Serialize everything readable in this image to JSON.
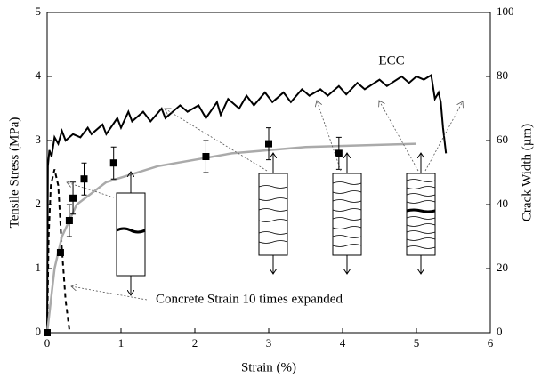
{
  "chart_data": {
    "type": "line",
    "xlabel": "Strain (%)",
    "ylabel": "Tensile Stress (MPa)",
    "y2label": "Crack Width (µm)",
    "xlim": [
      0,
      6
    ],
    "xticks": [
      0,
      1,
      2,
      3,
      4,
      5,
      6
    ],
    "ylim": [
      0,
      5
    ],
    "yticks": [
      0,
      1,
      2,
      3,
      4,
      5
    ],
    "y2lim": [
      0,
      100
    ],
    "y2ticks": [
      0,
      20,
      40,
      60,
      80,
      100
    ],
    "annotations": [
      "ECC",
      "Concrete Strain 10 times expanded"
    ],
    "series": [
      {
        "name": "ECC",
        "color": "#000000",
        "x": [
          0,
          0.01,
          0.03,
          0.06,
          0.1,
          0.15,
          0.2,
          0.25,
          0.35,
          0.45,
          0.55,
          0.6,
          0.75,
          0.8,
          0.95,
          1.0,
          1.1,
          1.15,
          1.3,
          1.4,
          1.55,
          1.6,
          1.8,
          1.9,
          2.05,
          2.15,
          2.3,
          2.35,
          2.45,
          2.6,
          2.7,
          2.8,
          2.95,
          3.05,
          3.2,
          3.3,
          3.45,
          3.55,
          3.7,
          3.8,
          3.95,
          4.05,
          4.2,
          4.3,
          4.5,
          4.6,
          4.8,
          4.9,
          5.0,
          5.1,
          5.2,
          5.25,
          5.3,
          5.33,
          5.36,
          5.4
        ],
        "values": [
          0,
          2.6,
          2.85,
          2.75,
          3.05,
          2.95,
          3.15,
          3.0,
          3.1,
          3.05,
          3.2,
          3.1,
          3.25,
          3.1,
          3.35,
          3.2,
          3.45,
          3.3,
          3.45,
          3.3,
          3.5,
          3.35,
          3.55,
          3.45,
          3.55,
          3.35,
          3.6,
          3.4,
          3.65,
          3.5,
          3.7,
          3.55,
          3.75,
          3.6,
          3.75,
          3.6,
          3.8,
          3.7,
          3.8,
          3.7,
          3.85,
          3.72,
          3.9,
          3.8,
          3.95,
          3.85,
          4.0,
          3.9,
          4.0,
          3.95,
          4.02,
          3.65,
          3.75,
          3.6,
          3.2,
          2.8
        ]
      },
      {
        "color": "#000000",
        "style": "dashed",
        "x": [
          0,
          0.02,
          0.05,
          0.1,
          0.15,
          0.2,
          0.25,
          0.3
        ],
        "values": [
          0,
          1.5,
          2.3,
          2.55,
          2.3,
          1.3,
          0.5,
          0.05
        ]
      },
      {
        "color": "#aaaaaa",
        "axis": "y2",
        "x": [
          0,
          0.1,
          0.2,
          0.4,
          0.8,
          1.5,
          2.5,
          3.5,
          5.0
        ],
        "values": [
          0,
          20,
          30,
          40,
          47,
          52,
          56,
          58,
          59
        ]
      },
      {
        "color": "#000000",
        "axis": "y2",
        "marker": "square",
        "x": [
          0,
          0.18,
          0.3,
          0.35,
          0.5,
          0.9,
          2.15,
          3.0,
          3.95
        ],
        "values": [
          0,
          25,
          35,
          42,
          48,
          53,
          55,
          59,
          56
        ],
        "errors": [
          0,
          0,
          5,
          5,
          5,
          5,
          5,
          5,
          5
        ]
      }
    ]
  }
}
